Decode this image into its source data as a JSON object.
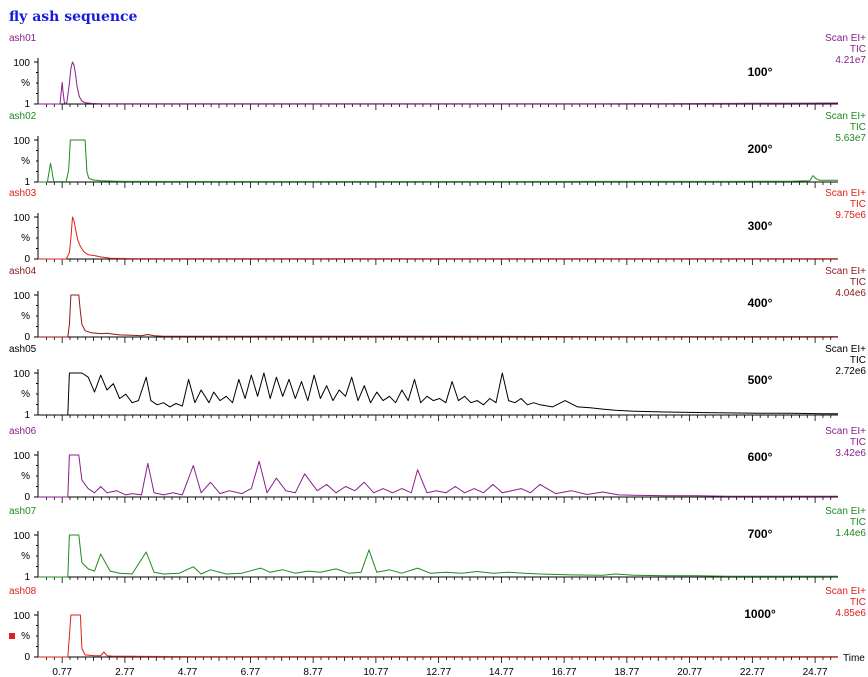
{
  "title": "fly ash sequence",
  "chart_data": {
    "type": "line",
    "title": "fly ash sequence",
    "xlabel": "Time",
    "xlim": [
      0.0,
      25.5
    ],
    "x_ticks": [
      0.77,
      2.77,
      4.77,
      6.77,
      8.77,
      10.77,
      12.77,
      14.77,
      16.77,
      18.77,
      20.77,
      22.77,
      24.77
    ],
    "ylabel": "%",
    "panels": [
      {
        "name": "ash01",
        "label": "100°",
        "scan": "Scan EI+",
        "tic": "TIC",
        "intensity": "4.21e7",
        "color": "#8a1f8a",
        "y_ticks": [
          100,
          1
        ],
        "ylim": [
          1,
          100
        ],
        "x": [
          0.0,
          0.7,
          0.74,
          0.77,
          0.8,
          0.84,
          0.87,
          0.92,
          1.0,
          1.05,
          1.1,
          1.15,
          1.2,
          1.25,
          1.32,
          1.4,
          1.5,
          1.7,
          2.0,
          4.0,
          6.0,
          8.0,
          10.0,
          12.0,
          14.0,
          16.0,
          18.0,
          20.0,
          22.0,
          24.0,
          25.5
        ],
        "y": [
          1,
          1,
          30,
          52,
          28,
          4,
          2,
          5,
          50,
          85,
          100,
          92,
          70,
          40,
          18,
          8,
          4,
          2.5,
          1.8,
          1.5,
          1.4,
          1.4,
          1.5,
          1.5,
          1.6,
          1.6,
          1.8,
          2.0,
          2.4,
          3.0,
          3.4
        ]
      },
      {
        "name": "ash02",
        "label": "200°",
        "scan": "Scan EI+",
        "tic": "TIC",
        "intensity": "5.63e7",
        "color": "#1f8a1f",
        "y_ticks": [
          100,
          1
        ],
        "ylim": [
          1,
          100
        ],
        "x": [
          0.0,
          0.3,
          0.36,
          0.4,
          0.45,
          0.5,
          0.9,
          0.98,
          1.03,
          1.08,
          1.5,
          1.56,
          1.62,
          1.75,
          2.0,
          2.5,
          3.0,
          6.0,
          10.0,
          14.0,
          18.0,
          22.0,
          24.0,
          24.6,
          24.7,
          24.8,
          24.9,
          25.5
        ],
        "y": [
          1,
          1,
          28,
          45,
          25,
          2,
          2,
          30,
          100,
          100,
          100,
          25,
          10,
          6,
          4,
          3,
          2.5,
          2.2,
          2.2,
          2.2,
          2.3,
          2.5,
          3,
          4,
          16,
          9,
          5,
          5
        ]
      },
      {
        "name": "ash03",
        "label": "300°",
        "scan": "Scan EI+",
        "tic": "TIC",
        "intensity": "9.75e6",
        "color": "#e0201a",
        "y_ticks": [
          100,
          0
        ],
        "ylim": [
          0,
          100
        ],
        "x": [
          0.0,
          0.9,
          1.0,
          1.05,
          1.1,
          1.15,
          1.2,
          1.27,
          1.35,
          1.45,
          1.6,
          1.8,
          2.0,
          2.3,
          3.0,
          6.0,
          12.0,
          18.0,
          25.5
        ],
        "y": [
          0,
          0,
          15,
          50,
          100,
          90,
          70,
          45,
          30,
          18,
          10,
          8,
          5,
          2,
          1,
          1,
          1,
          1,
          1
        ]
      },
      {
        "name": "ash04",
        "label": "400°",
        "scan": "Scan EI+",
        "tic": "TIC",
        "intensity": "4.04e6",
        "color": "#8b1a1a",
        "y_ticks": [
          100,
          0
        ],
        "ylim": [
          0,
          100
        ],
        "x": [
          0.0,
          0.95,
          1.0,
          1.05,
          1.3,
          1.35,
          1.4,
          1.5,
          1.7,
          2.0,
          2.2,
          2.4,
          2.6,
          3.0,
          3.3,
          3.5,
          3.7,
          4.0,
          6.0,
          8.0,
          10.0,
          12.0,
          18.0,
          25.5
        ],
        "y": [
          0,
          0,
          30,
          100,
          100,
          60,
          30,
          15,
          10,
          8,
          9,
          7,
          5,
          4,
          3,
          6,
          3,
          2,
          2,
          2,
          2,
          2,
          1,
          1
        ]
      },
      {
        "name": "ash05",
        "label": "500°",
        "scan": "Scan EI+",
        "tic": "TIC",
        "intensity": "2.72e6",
        "color": "#000000",
        "y_ticks": [
          100,
          1
        ],
        "ylim": [
          1,
          100
        ],
        "x": [
          0.0,
          0.95,
          1.0,
          1.4,
          1.6,
          1.8,
          2.0,
          2.2,
          2.4,
          2.6,
          2.8,
          3.0,
          3.2,
          3.45,
          3.6,
          3.8,
          4.0,
          4.2,
          4.4,
          4.6,
          4.8,
          5.0,
          5.2,
          5.45,
          5.6,
          5.8,
          6.0,
          6.2,
          6.4,
          6.6,
          6.8,
          7.0,
          7.2,
          7.4,
          7.6,
          7.8,
          8.0,
          8.2,
          8.4,
          8.6,
          8.8,
          9.0,
          9.2,
          9.4,
          9.6,
          9.8,
          10.0,
          10.2,
          10.4,
          10.6,
          10.8,
          11.0,
          11.2,
          11.4,
          11.6,
          11.8,
          12.0,
          12.2,
          12.4,
          12.6,
          12.8,
          13.0,
          13.2,
          13.4,
          13.6,
          13.8,
          14.0,
          14.2,
          14.4,
          14.6,
          14.8,
          15.0,
          15.2,
          15.4,
          15.6,
          15.8,
          16.0,
          16.4,
          16.8,
          17.2,
          17.6,
          18.0,
          18.4,
          19.0,
          20.0,
          21.0,
          22.0,
          23.0,
          24.0,
          25.0,
          25.5
        ],
        "y": [
          1,
          1,
          100,
          100,
          90,
          55,
          95,
          60,
          75,
          40,
          50,
          30,
          35,
          90,
          35,
          25,
          30,
          20,
          28,
          22,
          85,
          30,
          60,
          30,
          55,
          35,
          45,
          30,
          85,
          40,
          95,
          45,
          100,
          40,
          90,
          45,
          85,
          40,
          80,
          35,
          95,
          40,
          70,
          35,
          60,
          45,
          90,
          35,
          70,
          30,
          55,
          35,
          45,
          30,
          60,
          35,
          85,
          30,
          45,
          35,
          40,
          30,
          80,
          35,
          45,
          30,
          35,
          25,
          40,
          30,
          100,
          35,
          30,
          40,
          25,
          30,
          25,
          20,
          35,
          20,
          18,
          15,
          12,
          10,
          8,
          7,
          6,
          5,
          5,
          4,
          4
        ]
      },
      {
        "name": "ash06",
        "label": "600°",
        "scan": "Scan EI+",
        "tic": "TIC",
        "intensity": "3.42e6",
        "color": "#8a1f8a",
        "y_ticks": [
          100,
          0
        ],
        "ylim": [
          0,
          100
        ],
        "x": [
          0.0,
          0.95,
          1.0,
          1.3,
          1.4,
          1.6,
          1.8,
          2.0,
          2.2,
          2.5,
          2.8,
          3.0,
          3.3,
          3.5,
          3.7,
          4.0,
          4.3,
          4.6,
          4.95,
          5.2,
          5.5,
          5.8,
          6.1,
          6.5,
          6.8,
          7.05,
          7.3,
          7.6,
          7.9,
          8.2,
          8.5,
          8.9,
          9.2,
          9.5,
          9.8,
          10.1,
          10.4,
          10.7,
          11.0,
          11.3,
          11.6,
          11.9,
          12.1,
          12.4,
          12.7,
          13.0,
          13.3,
          13.6,
          13.9,
          14.2,
          14.5,
          14.8,
          15.1,
          15.4,
          15.7,
          16.0,
          16.5,
          17.0,
          17.5,
          18.0,
          18.5,
          19.0,
          20.0,
          21.0,
          22.0,
          23.0,
          24.0,
          25.5
        ],
        "y": [
          0,
          0,
          100,
          100,
          40,
          20,
          10,
          25,
          10,
          15,
          5,
          8,
          5,
          80,
          10,
          5,
          10,
          5,
          75,
          10,
          35,
          8,
          15,
          8,
          20,
          85,
          10,
          45,
          15,
          10,
          55,
          15,
          30,
          10,
          25,
          15,
          35,
          10,
          20,
          10,
          20,
          10,
          65,
          10,
          15,
          10,
          25,
          10,
          20,
          10,
          30,
          10,
          15,
          20,
          10,
          30,
          8,
          15,
          6,
          12,
          5,
          4,
          3,
          3,
          2,
          2,
          2,
          2
        ]
      },
      {
        "name": "ash07",
        "label": "700°",
        "scan": "Scan EI+",
        "tic": "TIC",
        "intensity": "1.44e6",
        "color": "#1f8a1f",
        "y_ticks": [
          100,
          1
        ],
        "ylim": [
          1,
          100
        ],
        "x": [
          0.0,
          0.95,
          1.0,
          1.3,
          1.4,
          1.6,
          1.8,
          2.0,
          2.3,
          2.6,
          3.0,
          3.45,
          3.7,
          4.0,
          4.5,
          4.95,
          5.2,
          5.5,
          6.0,
          6.5,
          7.1,
          7.4,
          7.8,
          8.2,
          8.6,
          9.0,
          9.5,
          9.9,
          10.3,
          10.55,
          10.8,
          11.2,
          11.6,
          12.1,
          12.5,
          13.0,
          13.5,
          14.0,
          14.5,
          15.0,
          15.5,
          16.0,
          17.0,
          18.0,
          18.4,
          19.0,
          20.0,
          21.0,
          22.0,
          23.0,
          24.0,
          25.5
        ],
        "y": [
          1,
          1,
          100,
          100,
          35,
          20,
          15,
          55,
          15,
          10,
          8,
          60,
          12,
          8,
          10,
          25,
          8,
          18,
          8,
          10,
          22,
          12,
          18,
          10,
          15,
          12,
          20,
          10,
          12,
          65,
          12,
          18,
          10,
          22,
          10,
          12,
          10,
          14,
          10,
          12,
          10,
          8,
          6,
          5,
          8,
          5,
          4,
          4,
          3,
          3,
          3,
          3
        ]
      },
      {
        "name": "ash08",
        "label": "1000°",
        "scan": "Scan EI+",
        "tic": "TIC",
        "intensity": "4.85e6",
        "color": "#e0201a",
        "y_ticks": [
          100,
          0
        ],
        "ylim": [
          0,
          100
        ],
        "x": [
          0.0,
          0.95,
          1.0,
          1.05,
          1.35,
          1.4,
          1.5,
          1.8,
          2.0,
          2.1,
          2.2,
          2.4,
          2.6,
          3.0,
          3.5,
          5.0,
          10.0,
          15.0,
          25.5
        ],
        "y": [
          0,
          0,
          50,
          100,
          100,
          20,
          5,
          3,
          3,
          12,
          3,
          2,
          2,
          2,
          1.5,
          1,
          1,
          1,
          1
        ]
      }
    ]
  }
}
